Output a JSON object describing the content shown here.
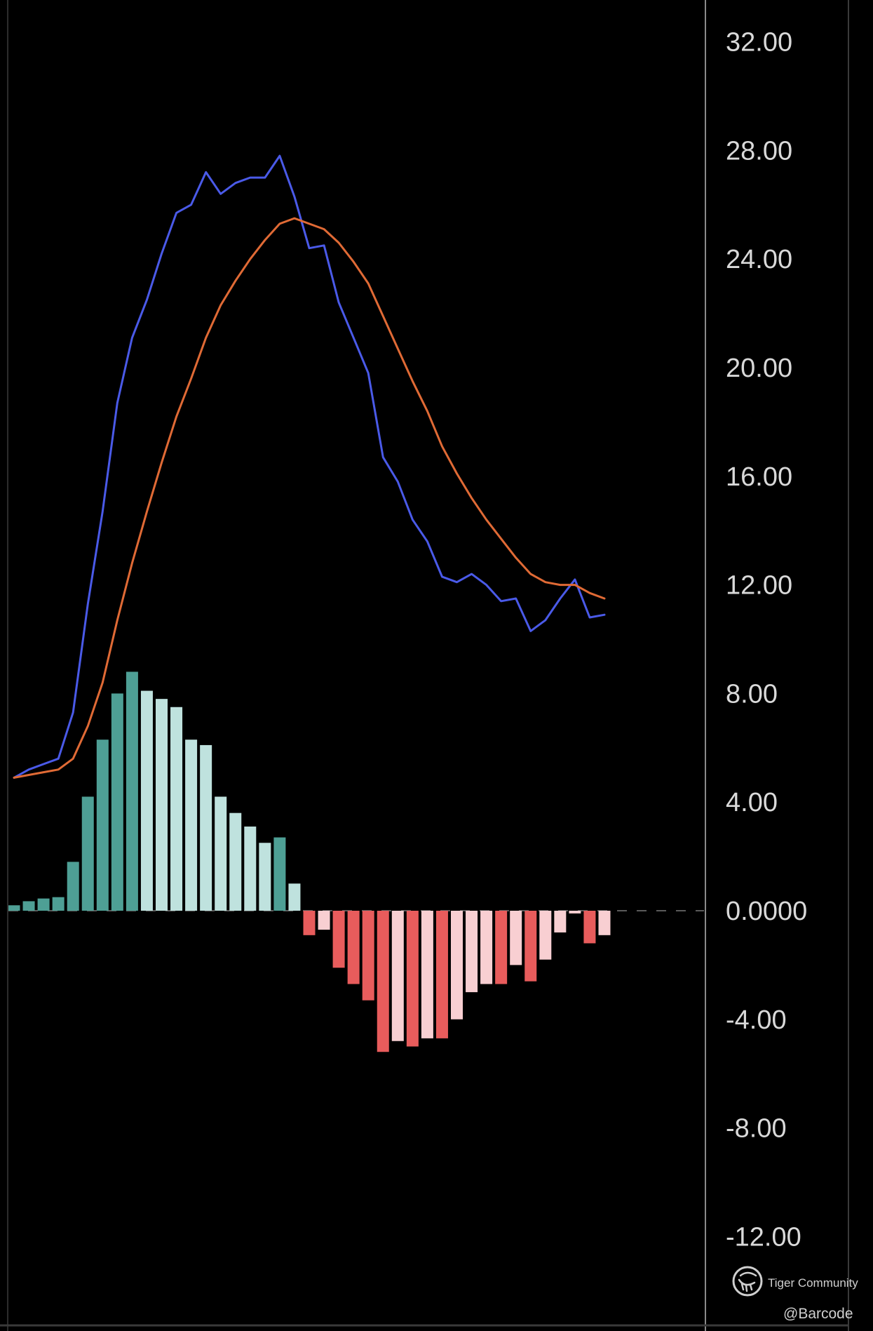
{
  "chart_data": {
    "type": "bar+line",
    "title": "",
    "xlabel": "",
    "ylabel": "",
    "ylim": [
      -13.8,
      33.5
    ],
    "y_ticks": [
      "32.00",
      "28.00",
      "24.00",
      "20.00",
      "16.00",
      "12.00",
      "8.00",
      "4.00",
      "0.0000",
      "-4.00",
      "-8.00",
      "-12.00"
    ],
    "y_tick_values": [
      32,
      28,
      24,
      20,
      16,
      12,
      8,
      4,
      0,
      -4,
      -8,
      -12
    ],
    "grid": false,
    "zero_line": "dashed",
    "series": [
      {
        "kind": "line",
        "color": "#4a5ae8",
        "values": [
          4.9,
          5.2,
          5.4,
          5.6,
          7.3,
          11.3,
          14.7,
          18.7,
          21.1,
          22.5,
          24.2,
          25.7,
          26.0,
          27.2,
          26.4,
          26.8,
          27.0,
          27.0,
          27.8,
          26.3,
          24.4,
          24.5,
          22.4,
          21.1,
          19.8,
          16.7,
          15.8,
          14.4,
          13.6,
          12.3,
          12.1,
          12.4,
          12.0,
          11.4,
          11.5,
          10.3,
          10.7,
          11.5,
          12.2,
          10.8,
          10.9
        ]
      },
      {
        "kind": "line",
        "color": "#e06a35",
        "values": [
          4.9,
          5.0,
          5.1,
          5.2,
          5.6,
          6.8,
          8.4,
          10.7,
          12.8,
          14.7,
          16.5,
          18.2,
          19.6,
          21.1,
          22.3,
          23.2,
          24.0,
          24.7,
          25.3,
          25.5,
          25.3,
          25.1,
          24.6,
          23.9,
          23.1,
          21.9,
          20.7,
          19.5,
          18.4,
          17.1,
          16.1,
          15.2,
          14.4,
          13.7,
          13.0,
          12.4,
          12.1,
          12.0,
          12.0,
          11.7,
          11.5
        ]
      },
      {
        "kind": "histogram",
        "values": [
          0.2,
          0.35,
          0.45,
          0.5,
          1.8,
          4.2,
          6.3,
          8.0,
          8.8,
          8.1,
          7.8,
          7.5,
          6.3,
          6.1,
          4.2,
          3.6,
          3.1,
          2.5,
          2.7,
          1.0,
          -0.9,
          -0.7,
          -2.1,
          -2.7,
          -3.3,
          -5.2,
          -4.8,
          -5.0,
          -4.7,
          -4.7,
          -4.0,
          -3.0,
          -2.7,
          -2.7,
          -2.0,
          -2.6,
          -1.8,
          -0.8,
          -0.1,
          -1.2,
          -0.9
        ],
        "colors": {
          "positive_rising": "#4e9f95",
          "positive_falling": "#bfe2de",
          "negative_falling": "#e85c5c",
          "negative_rising": "#f8cfd2"
        }
      }
    ]
  },
  "watermark": {
    "brand": "Tiger Community",
    "handle": "@Barcode",
    "icon": "tiger-community-logo-icon"
  }
}
